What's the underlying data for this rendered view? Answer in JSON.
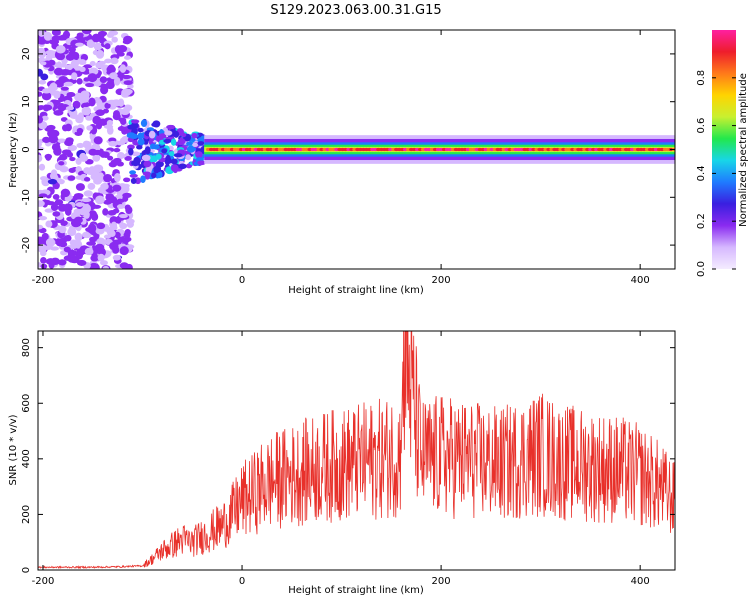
{
  "title": "S129.2023.063.00.31.G15",
  "colors": {
    "snr_line": "#e8302a",
    "spectrogram_cmap": [
      "#f4ecff",
      "#d6b8ff",
      "#8a2bf0",
      "#3a1fe0",
      "#1f7bff",
      "#18d6e8",
      "#22e84c",
      "#c8f030",
      "#ffd400",
      "#ff7a1a",
      "#ee1d2c",
      "#ff1fa0"
    ]
  },
  "chart_data": [
    {
      "type": "heatmap",
      "xlabel": "Height of straight line (km)",
      "ylabel": "Frequency (Hz)",
      "xlim": [
        -205,
        435
      ],
      "ylim": [
        -25,
        25
      ],
      "xticks": [
        -200,
        0,
        200,
        400
      ],
      "yticks": [
        -20,
        -10,
        0,
        10,
        20
      ],
      "colorbar": {
        "label": "Normalized spectral amplitude",
        "range": [
          0,
          1
        ],
        "ticks": [
          0.0,
          0.2,
          0.4,
          0.6,
          0.8
        ]
      },
      "grid": false,
      "description_regions": {
        "noise_band_x": [
          -205,
          -112
        ],
        "turbulent_band_x": [
          -112,
          -38
        ],
        "steady_signal_x": [
          -38,
          435
        ],
        "steady_signal_freq_hz": 0
      }
    },
    {
      "type": "line",
      "xlabel": "Height of straight line (km)",
      "ylabel": "SNR (10 * v/v)",
      "xlim": [
        -205,
        435
      ],
      "ylim": [
        0,
        860
      ],
      "xticks": [
        -200,
        0,
        200,
        400
      ],
      "yticks": [
        0,
        200,
        400,
        600,
        800
      ],
      "grid": false,
      "series": [
        {
          "x": [
            -205,
            -180,
            -150,
            -120,
            -100,
            -90,
            -80,
            -70,
            -60,
            -50,
            -40,
            -30,
            -20,
            -10,
            0,
            10,
            20,
            30,
            40,
            50,
            60,
            80,
            100,
            120,
            140,
            160,
            162,
            180,
            200,
            220,
            240,
            260,
            280,
            300,
            320,
            340,
            360,
            380,
            400,
            420,
            435
          ],
          "values": [
            10,
            10,
            10,
            12,
            15,
            40,
            70,
            90,
            110,
            100,
            120,
            140,
            160,
            200,
            250,
            270,
            300,
            320,
            330,
            340,
            350,
            370,
            380,
            390,
            400,
            420,
            860,
            400,
            410,
            400,
            390,
            380,
            400,
            420,
            390,
            380,
            370,
            360,
            340,
            300,
            250
          ]
        }
      ]
    }
  ]
}
